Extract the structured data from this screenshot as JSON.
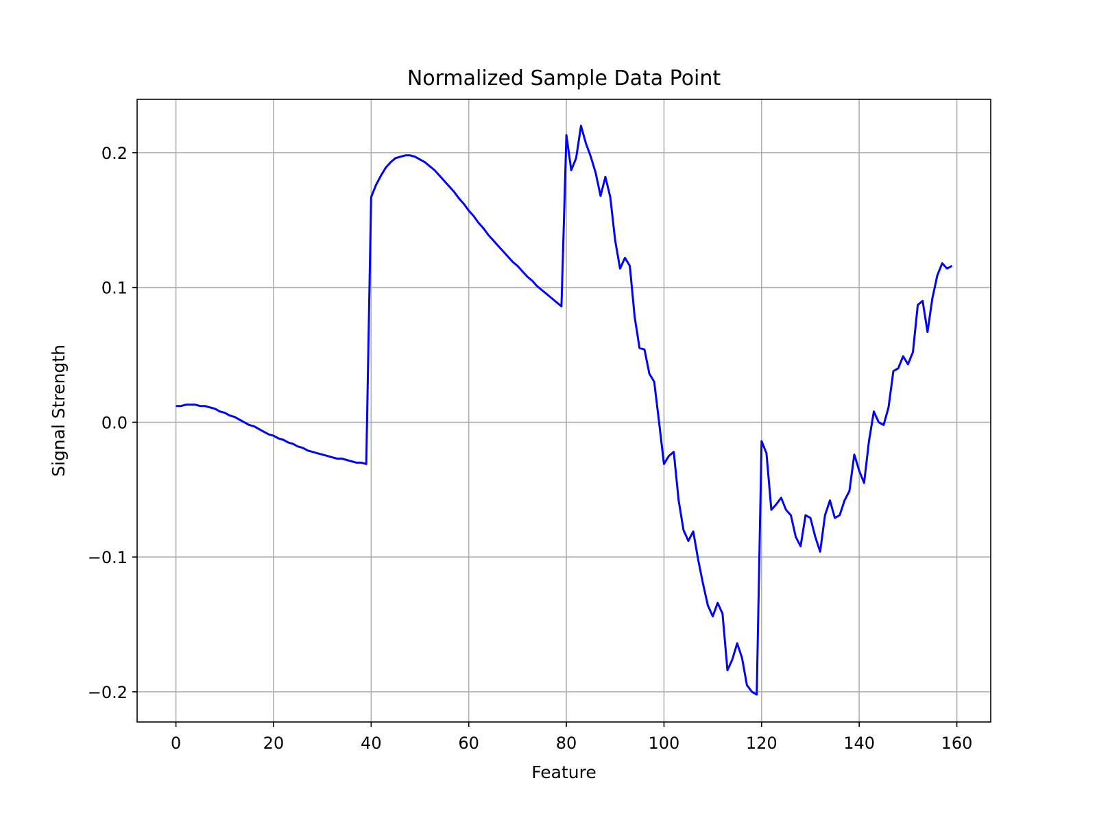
{
  "chart_data": {
    "type": "line",
    "title": "Normalized Sample Data Point",
    "xlabel": "Feature",
    "ylabel": "Signal Strength",
    "xlim": [
      -7.95,
      166.95
    ],
    "ylim": [
      -0.2224,
      0.2396
    ],
    "xticks": [
      0,
      20,
      40,
      60,
      80,
      100,
      120,
      140,
      160
    ],
    "yticks": [
      -0.2,
      -0.1,
      0.0,
      0.1,
      0.2
    ],
    "xtick_labels": [
      "0",
      "20",
      "40",
      "60",
      "80",
      "100",
      "120",
      "140",
      "160"
    ],
    "ytick_labels": [
      "−0.2",
      "−0.1",
      "0.0",
      "0.1",
      "0.2"
    ],
    "grid": true,
    "legend": "none",
    "series": [
      {
        "color": "#0000ff",
        "x": [
          0,
          1,
          2,
          3,
          4,
          5,
          6,
          7,
          8,
          9,
          10,
          11,
          12,
          13,
          14,
          15,
          16,
          17,
          18,
          19,
          20,
          21,
          22,
          23,
          24,
          25,
          26,
          27,
          28,
          29,
          30,
          31,
          32,
          33,
          34,
          35,
          36,
          37,
          38,
          39,
          40,
          41,
          42,
          43,
          44,
          45,
          46,
          47,
          48,
          49,
          50,
          51,
          52,
          53,
          54,
          55,
          56,
          57,
          58,
          59,
          60,
          61,
          62,
          63,
          64,
          65,
          66,
          67,
          68,
          69,
          70,
          71,
          72,
          73,
          74,
          75,
          76,
          77,
          78,
          79,
          80,
          81,
          82,
          83,
          84,
          85,
          86,
          87,
          88,
          89,
          90,
          91,
          92,
          93,
          94,
          95,
          96,
          97,
          98,
          99,
          100,
          101,
          102,
          103,
          104,
          105,
          106,
          107,
          108,
          109,
          110,
          111,
          112,
          113,
          114,
          115,
          116,
          117,
          118,
          119,
          120,
          121,
          122,
          123,
          124,
          125,
          126,
          127,
          128,
          129,
          130,
          131,
          132,
          133,
          134,
          135,
          136,
          137,
          138,
          139,
          140,
          141,
          142,
          143,
          144,
          145,
          146,
          147,
          148,
          149,
          150,
          151,
          152,
          153,
          154,
          155,
          156,
          157,
          158,
          159
        ],
        "y": [
          0.012,
          0.012,
          0.013,
          0.013,
          0.013,
          0.012,
          0.012,
          0.011,
          0.01,
          0.008,
          0.007,
          0.005,
          0.004,
          0.002,
          0.0,
          -0.002,
          -0.003,
          -0.005,
          -0.007,
          -0.009,
          -0.01,
          -0.012,
          -0.013,
          -0.015,
          -0.016,
          -0.018,
          -0.019,
          -0.021,
          -0.022,
          -0.023,
          -0.024,
          -0.025,
          -0.026,
          -0.027,
          -0.027,
          -0.028,
          -0.029,
          -0.03,
          -0.03,
          -0.031,
          0.167,
          0.176,
          0.183,
          0.189,
          0.193,
          0.196,
          0.197,
          0.198,
          0.198,
          0.197,
          0.195,
          0.193,
          0.19,
          0.187,
          0.183,
          0.179,
          0.175,
          0.171,
          0.166,
          0.162,
          0.157,
          0.153,
          0.148,
          0.144,
          0.139,
          0.135,
          0.131,
          0.127,
          0.123,
          0.119,
          0.116,
          0.112,
          0.108,
          0.105,
          0.101,
          0.098,
          0.095,
          0.092,
          0.089,
          0.086,
          0.213,
          0.187,
          0.196,
          0.22,
          0.207,
          0.197,
          0.185,
          0.168,
          0.182,
          0.167,
          0.135,
          0.114,
          0.122,
          0.116,
          0.078,
          0.055,
          0.054,
          0.036,
          0.03,
          0.0,
          -0.031,
          -0.025,
          -0.022,
          -0.058,
          -0.08,
          -0.088,
          -0.081,
          -0.102,
          -0.12,
          -0.136,
          -0.144,
          -0.134,
          -0.142,
          -0.184,
          -0.176,
          -0.164,
          -0.175,
          -0.195,
          -0.2,
          -0.202,
          -0.014,
          -0.023,
          -0.065,
          -0.061,
          -0.056,
          -0.065,
          -0.069,
          -0.085,
          -0.092,
          -0.069,
          -0.071,
          -0.085,
          -0.096,
          -0.069,
          -0.058,
          -0.071,
          -0.069,
          -0.058,
          -0.051,
          -0.024,
          -0.036,
          -0.045,
          -0.014,
          0.008,
          0.0,
          -0.002,
          0.011,
          0.038,
          0.04,
          0.049,
          0.043,
          0.052,
          0.087,
          0.09,
          0.067,
          0.092,
          0.109,
          0.118,
          0.114,
          0.116
        ]
      }
    ]
  }
}
